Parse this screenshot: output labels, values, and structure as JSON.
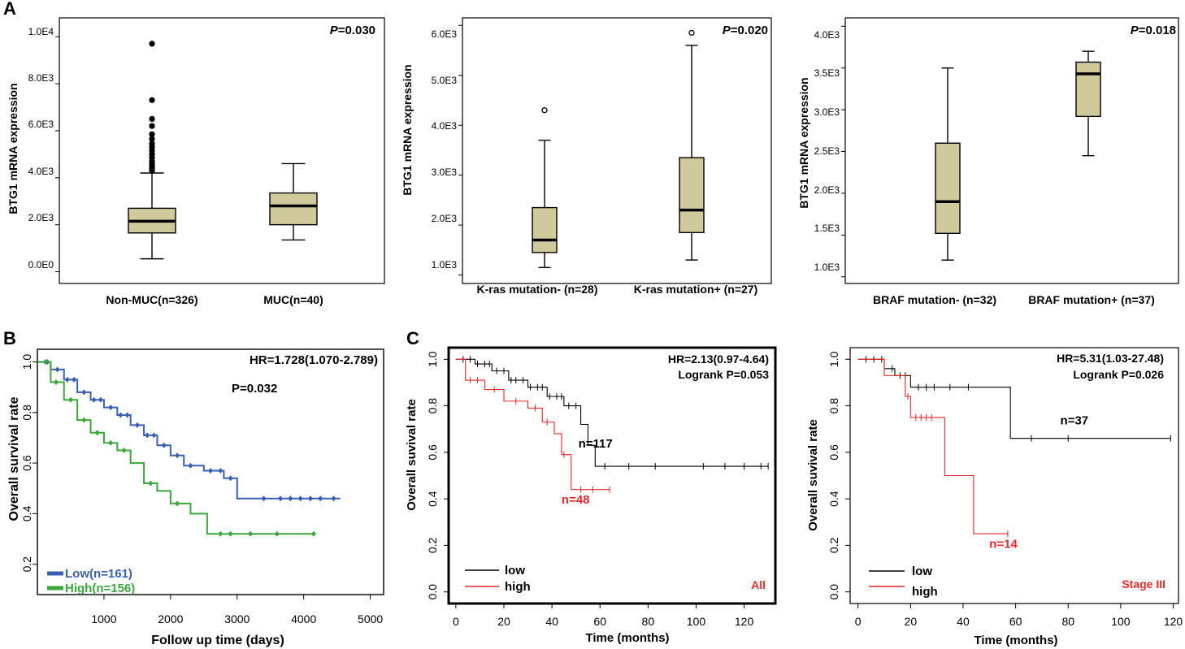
{
  "panel_labels": {
    "a": "A",
    "b": "B",
    "c": "C"
  },
  "colors": {
    "box_fill": "#cfc99c",
    "low_blue": "#3a5fb0",
    "high_green": "#3aa83a",
    "red": "#e8282a",
    "black": "#000000"
  },
  "chart_data": [
    {
      "id": "a1",
      "type": "box",
      "ylabel": "BTG1 mRNA expression",
      "ylim": [
        -500,
        10800
      ],
      "yticks": [
        0,
        2000,
        4000,
        6000,
        8000,
        10000
      ],
      "ytick_labels": [
        "0.0E0",
        "2.0E3",
        "4.0E3",
        "6.0E3",
        "8.0E3",
        "1.0E4"
      ],
      "annotation": {
        "prefix": "P",
        "value": "=0.030"
      },
      "groups": [
        {
          "label": "Non-MUC(n=326)",
          "min": 550,
          "q1": 1650,
          "median": 2150,
          "q3": 2700,
          "max": 4200,
          "outliers": [
            4300,
            4400,
            4500,
            4600,
            4700,
            4850,
            5000,
            5150,
            5300,
            5450,
            5650,
            5850,
            6200,
            6500,
            7300,
            9700
          ]
        },
        {
          "label": "MUC(n=40)",
          "min": 1350,
          "q1": 2000,
          "median": 2800,
          "q3": 3350,
          "max": 4600,
          "outliers": []
        }
      ]
    },
    {
      "id": "a2",
      "type": "box",
      "ylabel": "BTG1 mRNA expression",
      "ylim": [
        830,
        6150
      ],
      "yticks": [
        1000,
        2000,
        3000,
        4000,
        5000,
        6000
      ],
      "ytick_labels": [
        "1.0E3",
        "2.0E3",
        "3.0E3",
        "4.0E3",
        "5.0E3",
        "6.0E3"
      ],
      "annotation": {
        "prefix": "P",
        "value": "=0.020"
      },
      "groups": [
        {
          "label": "K-ras mutation- (n=28)",
          "min": 1150,
          "q1": 1450,
          "median": 1700,
          "q3": 2350,
          "max": 3700,
          "outliers": [
            4300
          ]
        },
        {
          "label": "K-ras mutation+ (n=27)",
          "min": 1300,
          "q1": 1850,
          "median": 2300,
          "q3": 3350,
          "max": 5600,
          "outliers": [
            5850
          ]
        }
      ]
    },
    {
      "id": "a3",
      "type": "box",
      "ylabel": "BTG1 mRNA expression",
      "ylim": [
        920,
        4100
      ],
      "yticks": [
        1000,
        1500,
        2000,
        2500,
        3000,
        3500,
        4000
      ],
      "ytick_labels": [
        "1.0E3",
        "1.5E3",
        "2.0E3",
        "2.5E3",
        "3.0E3",
        "3.5E3",
        "4.0E3"
      ],
      "annotation": {
        "prefix": "P",
        "value": "=0.018"
      },
      "groups": [
        {
          "label": "BRAF mutation- (n=32)",
          "min": 1200,
          "q1": 1520,
          "median": 1900,
          "q3": 2600,
          "max": 3500,
          "outliers": []
        },
        {
          "label": "BRAF mutation+ (n=37)",
          "min": 2450,
          "q1": 2920,
          "median": 3430,
          "q3": 3570,
          "max": 3700,
          "outliers": []
        }
      ]
    },
    {
      "id": "b",
      "type": "line",
      "xlabel": "Follow up time (days)",
      "ylabel": "Overall survival rate",
      "xlim": [
        0,
        5200
      ],
      "ylim": [
        0.08,
        1.05
      ],
      "xticks": [
        1000,
        2000,
        3000,
        4000,
        5000
      ],
      "yticks": [
        0.2,
        0.4,
        0.6,
        0.8,
        1.0
      ],
      "ytick_labels": [
        "0.2",
        "0.4",
        "0.6",
        "0.8",
        "1.0"
      ],
      "annotations": [
        "HR=1.728(1.070-2.789)",
        "P=0.032"
      ],
      "legend": [
        "Low(n=161)",
        "High(n=156)"
      ],
      "series": [
        {
          "name": "Low(n=161)",
          "x": [
            0,
            200,
            400,
            600,
            800,
            1000,
            1200,
            1400,
            1600,
            1800,
            2000,
            2200,
            2500,
            2800,
            3000,
            3500,
            4000,
            4550
          ],
          "y": [
            1.0,
            0.97,
            0.93,
            0.88,
            0.85,
            0.82,
            0.79,
            0.75,
            0.71,
            0.67,
            0.63,
            0.59,
            0.57,
            0.54,
            0.46,
            0.46,
            0.46,
            0.46
          ],
          "censor_x": [
            150,
            300,
            450,
            550,
            700,
            850,
            950,
            1100,
            1250,
            1350,
            1500,
            1650,
            1750,
            1900,
            2100,
            2300,
            2600,
            2750,
            2900,
            3400,
            3650,
            3800,
            3950,
            4100,
            4250,
            4450
          ]
        },
        {
          "name": "High(n=156)",
          "x": [
            0,
            200,
            400,
            600,
            800,
            1000,
            1200,
            1400,
            1600,
            1800,
            2000,
            2300,
            2550,
            3000,
            4150
          ],
          "y": [
            1.0,
            0.92,
            0.85,
            0.77,
            0.72,
            0.68,
            0.65,
            0.6,
            0.52,
            0.49,
            0.44,
            0.4,
            0.32,
            0.32,
            0.32
          ],
          "censor_x": [
            120,
            280,
            500,
            700,
            900,
            1100,
            1300,
            1700,
            2100,
            2750,
            2900,
            3200,
            3600,
            4150
          ]
        }
      ]
    },
    {
      "id": "c1",
      "type": "line",
      "xlabel": "Time (months)",
      "ylabel": "Overall suvival rate",
      "xlim": [
        -3,
        133
      ],
      "ylim": [
        -0.05,
        1.05
      ],
      "xticks": [
        0,
        20,
        40,
        60,
        80,
        100,
        120
      ],
      "yticks": [
        0.0,
        0.2,
        0.4,
        0.6,
        0.8,
        1.0
      ],
      "ytick_labels": [
        "0.0",
        "0.2",
        "0.4",
        "0.6",
        "0.8",
        "1.0"
      ],
      "annotations": [
        "HR=2.13(0.97-4.64)",
        "Logrank P=0.053"
      ],
      "legend": [
        "low",
        "high"
      ],
      "subset": "All",
      "series": [
        {
          "name": "n=117",
          "x": [
            0,
            8,
            15,
            22,
            30,
            38,
            45,
            52,
            55,
            58,
            130
          ],
          "y": [
            1.0,
            0.98,
            0.95,
            0.91,
            0.88,
            0.84,
            0.8,
            0.72,
            0.63,
            0.54,
            0.54
          ],
          "censor_x": [
            3,
            6,
            9,
            12,
            14,
            17,
            20,
            23,
            25,
            28,
            31,
            34,
            36,
            39,
            42,
            44,
            47,
            50,
            62,
            72,
            83,
            103,
            112,
            120,
            127,
            130
          ]
        },
        {
          "name": "n=48",
          "x": [
            0,
            4,
            12,
            20,
            30,
            36,
            41,
            44,
            48,
            64
          ],
          "y": [
            1.0,
            0.91,
            0.87,
            0.82,
            0.79,
            0.73,
            0.68,
            0.59,
            0.44,
            0.44
          ],
          "censor_x": [
            6,
            9,
            16,
            25,
            33,
            38,
            45,
            52,
            57,
            64
          ]
        }
      ]
    },
    {
      "id": "c2",
      "type": "line",
      "xlabel": "Time (months)",
      "ylabel": "Overall suvival rate",
      "xlim": [
        -3,
        122
      ],
      "ylim": [
        -0.05,
        1.05
      ],
      "xticks": [
        0,
        20,
        40,
        60,
        80,
        100,
        120
      ],
      "yticks": [
        0.0,
        0.2,
        0.4,
        0.6,
        0.8,
        1.0
      ],
      "ytick_labels": [
        "0.0",
        "0.2",
        "0.4",
        "0.6",
        "0.8",
        "1.0"
      ],
      "annotations": [
        "HR=5.31(1.03-27.48)",
        "Logrank P=0.026"
      ],
      "legend": [
        "low",
        "high"
      ],
      "subset": "Stage III",
      "series": [
        {
          "name": "n=37",
          "x": [
            0,
            10,
            14,
            20,
            58,
            119
          ],
          "y": [
            1.0,
            0.96,
            0.93,
            0.88,
            0.66,
            0.66
          ],
          "censor_x": [
            3,
            6,
            9,
            13,
            16,
            18,
            23,
            26,
            29,
            35,
            42,
            66,
            80,
            119
          ]
        },
        {
          "name": "n=14",
          "x": [
            0,
            10,
            18,
            20,
            33,
            44,
            57
          ],
          "y": [
            1.0,
            0.93,
            0.84,
            0.75,
            0.5,
            0.25,
            0.25
          ],
          "censor_x": [
            19,
            22,
            24,
            26,
            28,
            57
          ]
        }
      ]
    }
  ]
}
